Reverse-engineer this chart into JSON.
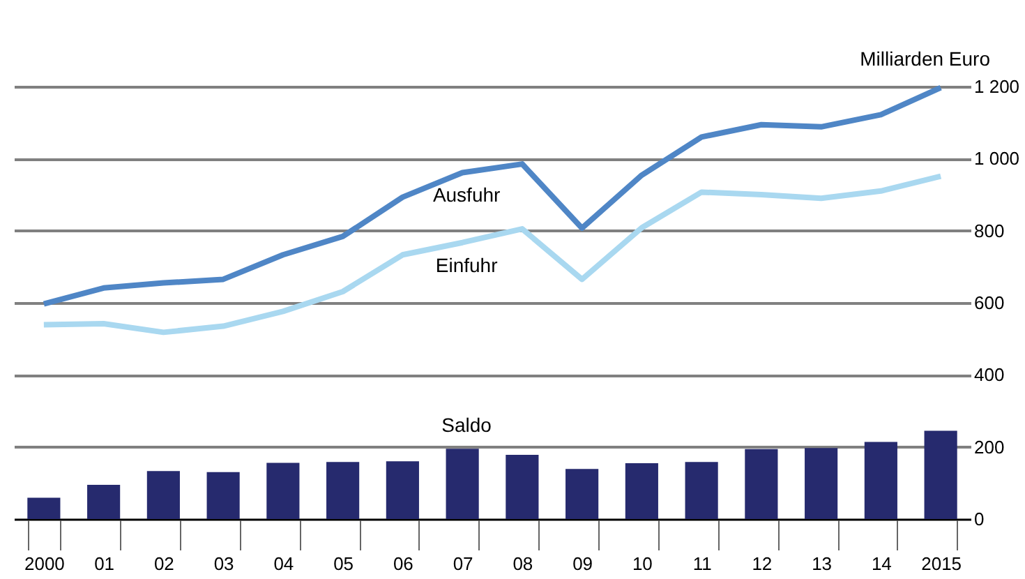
{
  "chart_data": {
    "type": "line",
    "ylabel": "Milliarden Euro",
    "categories": [
      "2000",
      "01",
      "02",
      "03",
      "04",
      "05",
      "06",
      "07",
      "08",
      "09",
      "10",
      "11",
      "12",
      "13",
      "14",
      "2015"
    ],
    "series": [
      {
        "name": "Ausfuhr",
        "color": "#4f86c6",
        "values": [
          597,
          641,
          655,
          665,
          733,
          784,
          893,
          961,
          985,
          807,
          954,
          1060,
          1094,
          1088,
          1122,
          1197
        ]
      },
      {
        "name": "Einfuhr",
        "color": "#a9d8f0",
        "values": [
          539,
          542,
          518,
          535,
          576,
          631,
          733,
          767,
          805,
          665,
          808,
          907,
          900,
          890,
          910,
          951
        ]
      },
      {
        "name": "Saldo",
        "type": "bar",
        "color": "#262a6e",
        "values": [
          59,
          95,
          133,
          130,
          156,
          158,
          160,
          195,
          178,
          139,
          155,
          158,
          194,
          197,
          214,
          245
        ]
      }
    ],
    "ylim": [
      0,
      1200
    ],
    "yticks": [
      0,
      200,
      400,
      600,
      800,
      {
        "value": 1000,
        "label": "1 000"
      },
      {
        "value": 1200,
        "label": "1 200"
      }
    ],
    "grid": "y",
    "line_style": "solid",
    "marker": "none"
  }
}
